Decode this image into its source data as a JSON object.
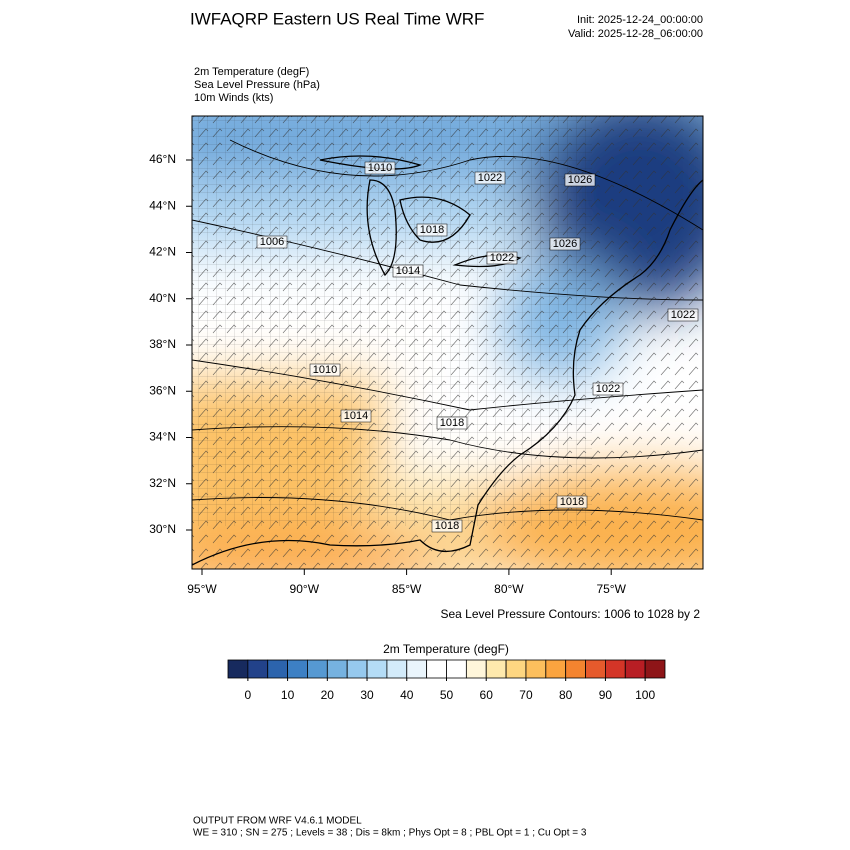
{
  "title": "IWFAQRP Eastern US Real Time WRF",
  "init": "Init: 2025-12-24_00:00:00",
  "valid": "Valid: 2025-12-28_06:00:00",
  "fields": [
    "2m Temperature   (degF)",
    "Sea Level Pressure   (hPa)",
    "10m Winds   (kts)"
  ],
  "lon_ticks": [
    "95°W",
    "90°W",
    "85°W",
    "80°W",
    "75°W"
  ],
  "lat_ticks": [
    "46°N",
    "44°N",
    "42°N",
    "40°N",
    "38°N",
    "36°N",
    "34°N",
    "32°N",
    "30°N"
  ],
  "contour_labels": [
    "1010",
    "1022",
    "1026",
    "1006",
    "1018",
    "1014",
    "1022",
    "1026",
    "1022",
    "1010",
    "1022",
    "1014",
    "1018",
    "1018",
    "1018"
  ],
  "contour_note": "Sea Level Pressure Contours: 1006 to 1028 by 2",
  "colorbar": {
    "title": "2m Temperature  (degF)",
    "lim": [
      -5,
      105
    ],
    "colors": [
      "#172a5e",
      "#22428a",
      "#2c64ad",
      "#3d80c4",
      "#5699d2",
      "#76b2e0",
      "#96c9ee",
      "#b4dcf6",
      "#d3ebfa",
      "#eaf5fc",
      "#ffffff",
      "#ffffff",
      "#fff6da",
      "#fee9ad",
      "#fed681",
      "#fdbf5d",
      "#fba43f",
      "#f4842f",
      "#e65a2c",
      "#d43527",
      "#b81e24",
      "#8e1518"
    ],
    "ticks": [
      0,
      10,
      20,
      30,
      40,
      50,
      60,
      70,
      80,
      90,
      100
    ]
  },
  "footer": [
    "OUTPUT FROM WRF V4.6.1 MODEL",
    "WE = 310 ; SN = 275 ; Levels = 38 ; Dis = 8km ; Phys Opt = 8 ; PBL Opt = 1 ; Cu Opt = 3"
  ]
}
